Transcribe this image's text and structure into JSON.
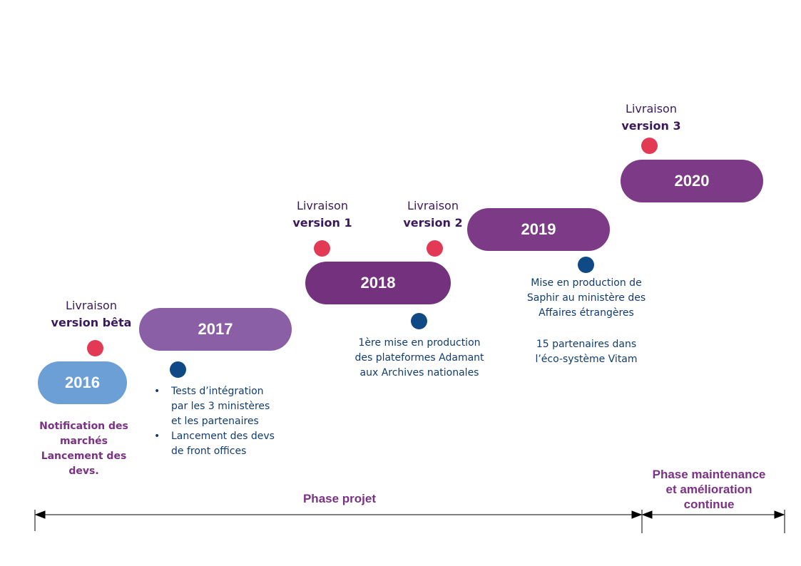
{
  "years": {
    "y2016": {
      "label": "2016",
      "color": "#6b9fd6"
    },
    "y2017": {
      "label": "2017",
      "color": "#8a5fa5"
    },
    "y2018": {
      "label": "2018",
      "color": "#74327e"
    },
    "y2019": {
      "label": "2019",
      "color": "#7d3a86"
    },
    "y2020": {
      "label": "2020",
      "color": "#7d3a86"
    }
  },
  "milestones": {
    "beta": {
      "line1": "Livraison",
      "line2": "version bêta"
    },
    "v1": {
      "line1": "Livraison",
      "line2": "version 1"
    },
    "v2": {
      "line1": "Livraison",
      "line2": "version 2"
    },
    "v3": {
      "line1": "Livraison",
      "line2": "version 3"
    }
  },
  "notes": {
    "n2016": [
      "Notification des",
      "marchés",
      "Lancement des",
      "devs."
    ],
    "n2017": [
      [
        "Tests d’intégration",
        "par les 3 ministères",
        "et les partenaires"
      ],
      [
        "Lancement des devs",
        "de front offices"
      ]
    ],
    "n2018": [
      "1ère mise en production",
      "des plateformes Adamant",
      "aux Archives nationales"
    ],
    "n2019a": [
      "Mise en production de",
      "Saphir au ministère des",
      "Affaires étrangères"
    ],
    "n2019b": [
      "15 partenaires dans",
      "l’éco-système Vitam"
    ]
  },
  "phases": {
    "projet": "Phase projet",
    "maintenance": [
      "Phase maintenance",
      "et amélioration",
      "continue"
    ]
  },
  "colors": {
    "red_dot": "#e23a55",
    "blue_dot": "#0f4a86",
    "purple_text": "#7b3186",
    "blue_text": "#123c70"
  }
}
